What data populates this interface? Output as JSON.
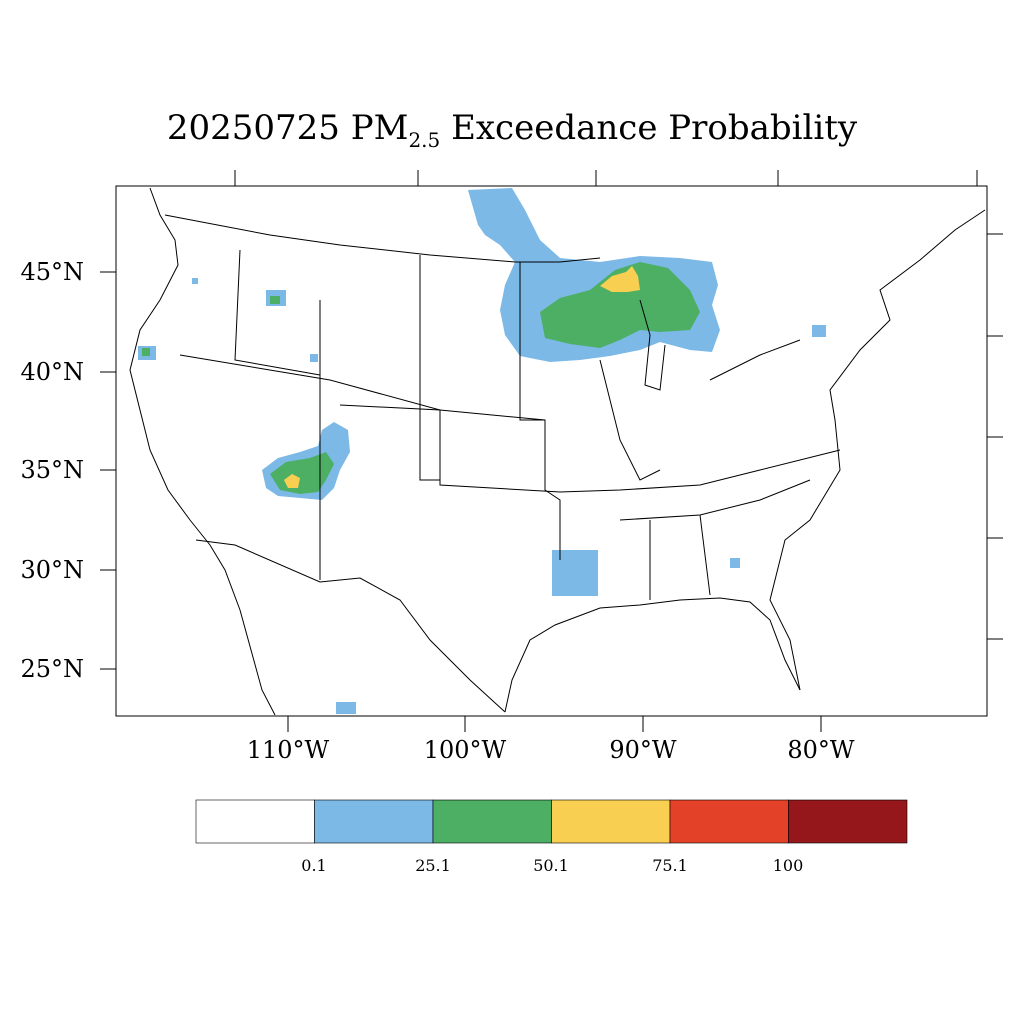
{
  "title": {
    "date": "20250725",
    "prefix": "PM",
    "subscript": "2.5",
    "suffix": "Exceedance Probability"
  },
  "map": {
    "latitude_labels": [
      "45°N",
      "40°N",
      "35°N",
      "30°N",
      "25°N"
    ],
    "longitude_labels": [
      "110°W",
      "100°W",
      "90°W",
      "80°W"
    ]
  },
  "legend": {
    "colors": [
      "#ffffff",
      "#7cb9e6",
      "#4caf64",
      "#f9cf52",
      "#e34229",
      "#95171b"
    ],
    "tick_labels": [
      "0.1",
      "25.1",
      "50.1",
      "75.1",
      "100"
    ]
  }
}
